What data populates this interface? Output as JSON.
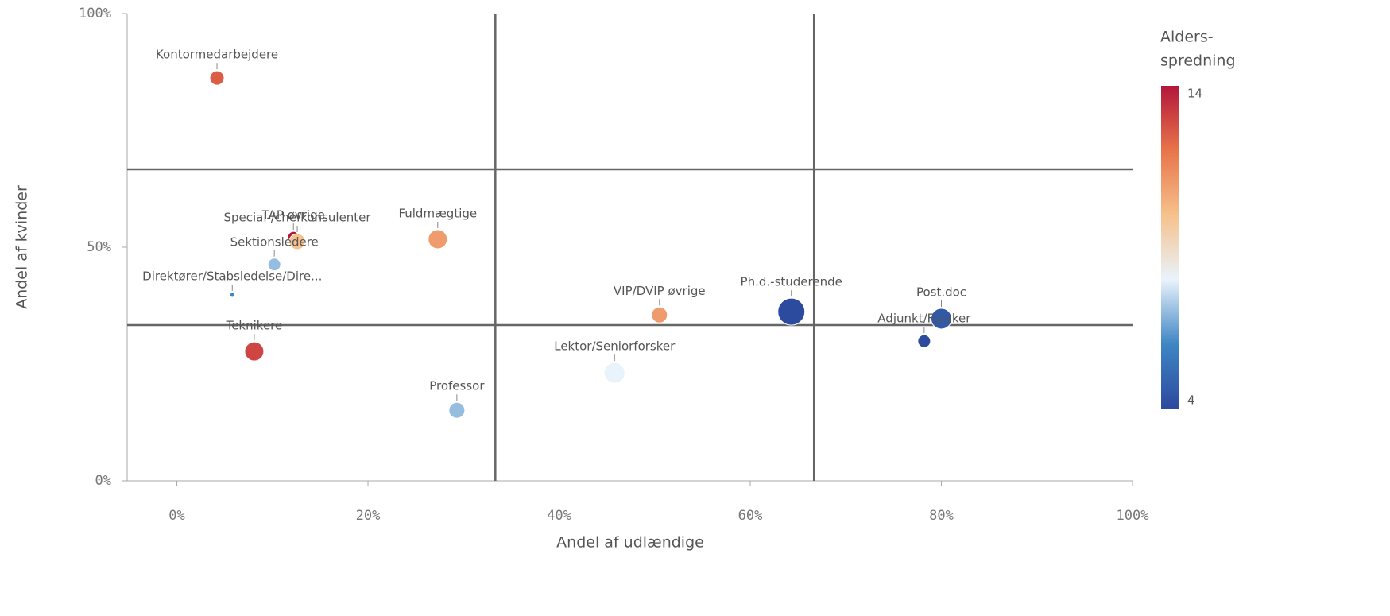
{
  "chart_data": {
    "type": "scatter",
    "x_label": "Andel af udlændige",
    "y_label": "Andel af kvinder",
    "xlim": [
      -5.2,
      100
    ],
    "ylim": [
      0,
      100
    ],
    "xticks": [
      {
        "value": 0,
        "label": "0%"
      },
      {
        "value": 20,
        "label": "20%"
      },
      {
        "value": 40,
        "label": "40%"
      },
      {
        "value": 60,
        "label": "60%"
      },
      {
        "value": 80,
        "label": "80%"
      },
      {
        "value": 100,
        "label": "100%"
      }
    ],
    "yticks": [
      {
        "value": 0,
        "label": "0%"
      },
      {
        "value": 50,
        "label": "50%"
      },
      {
        "value": 100,
        "label": "100%"
      }
    ],
    "x_reference_lines": [
      33.33,
      66.67
    ],
    "y_reference_lines": [
      33.33,
      66.67
    ],
    "labels": [
      "Kontormedarbejdere",
      "TAP øvrige",
      "Special-/chefkonsulenter",
      "Sektionsledere",
      "Direktører/Stabsledelse/Dire...",
      "Teknikere",
      "Fuldmægtige",
      "Professor",
      "Lektor/Seniorforsker",
      "VIP/DVIP øvrige",
      "Ph.d.-studerende",
      "Post.doc",
      "Adjunkt/Forsker"
    ],
    "x": [
      4.2,
      12.2,
      12.6,
      10.2,
      5.8,
      8.1,
      27.3,
      29.3,
      45.8,
      50.5,
      64.3,
      80.0,
      78.2
    ],
    "y": [
      86.2,
      52.2,
      51.2,
      46.3,
      39.8,
      27.7,
      51.7,
      15.1,
      23.1,
      35.5,
      36.2,
      34.7,
      29.9
    ],
    "size": [
      9,
      7,
      10,
      8,
      3,
      12,
      12,
      10,
      13,
      10,
      17,
      13,
      8
    ],
    "color_values": [
      12.5,
      14,
      10,
      7,
      6,
      13,
      11,
      7,
      8,
      11,
      4,
      4.5,
      4
    ],
    "color_legend": {
      "title_lines": [
        "Alders-",
        "spredning"
      ],
      "min": 4,
      "max": 14,
      "colors": [
        "#2c4a9e",
        "#3f86c4",
        "#e9f3fb",
        "#f6c18c",
        "#e8744a",
        "#b3163b"
      ]
    }
  }
}
